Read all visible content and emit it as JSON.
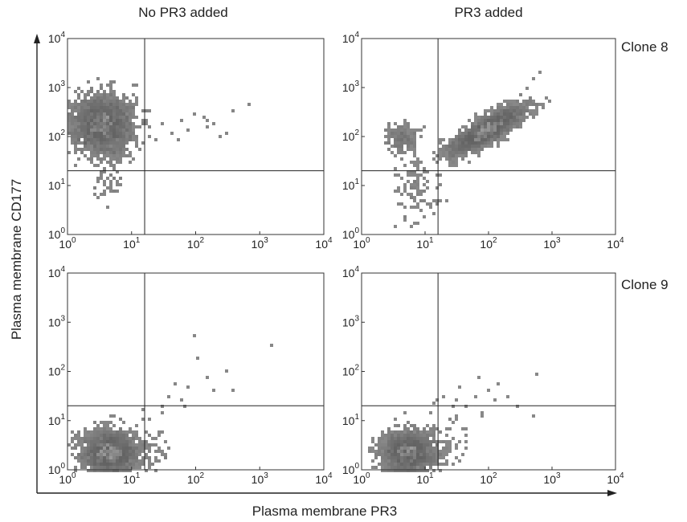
{
  "chart_data": {
    "type": "scatter",
    "x_axis_label": "Plasma membrane PR3",
    "y_axis_label": "Plasma membrane CD177",
    "column_titles": [
      "No PR3 added",
      "PR3 added"
    ],
    "row_labels": [
      "Clone 8",
      "Clone 9"
    ],
    "x_scale": "log",
    "y_scale": "log",
    "xlim": [
      1,
      10000
    ],
    "ylim": [
      1,
      10000
    ],
    "tick_base": "10",
    "tick_exponents": [
      "0",
      "1",
      "2",
      "3",
      "4"
    ],
    "gate_x": 16,
    "gate_y": 20,
    "grid": false,
    "panels": [
      {
        "column": "No PR3 added",
        "row": "Clone 8",
        "populations": [
          {
            "kind": "dense",
            "cx": 3.5,
            "cy": 180,
            "sx": 0.22,
            "sy": 0.28,
            "n": 2600
          },
          {
            "kind": "sparse",
            "cx": 4.5,
            "cy": 15,
            "sx": 0.12,
            "sy": 0.3,
            "n": 60
          },
          {
            "kind": "points",
            "x": [
              20,
              30,
              45,
              60,
              80,
              100,
              130,
              160,
              200,
              250,
              300,
              400,
              700,
              25,
              55,
              150
            ],
            "y": [
              150,
              180,
              120,
              200,
              130,
              300,
              250,
              150,
              180,
              100,
              120,
              350,
              450,
              80,
              90,
              220
            ]
          }
        ]
      },
      {
        "column": "PR3 added",
        "row": "Clone 8",
        "populations": [
          {
            "kind": "diagonal",
            "x_from": 15,
            "x_to": 600,
            "y_from": 30,
            "y_to": 600,
            "spread": 0.12,
            "n": 2400
          },
          {
            "kind": "sparse",
            "cx": 4.2,
            "cy": 90,
            "sx": 0.12,
            "sy": 0.14,
            "n": 220
          },
          {
            "kind": "sparse",
            "cx": 7.5,
            "cy": 8,
            "sx": 0.17,
            "sy": 0.35,
            "n": 110
          },
          {
            "kind": "points",
            "x": [
              400,
              500,
              650
            ],
            "y": [
              1000,
              1500,
              2200
            ]
          }
        ]
      },
      {
        "column": "No PR3 added",
        "row": "Clone 9",
        "populations": [
          {
            "kind": "dense",
            "cx": 4.5,
            "cy": 2.3,
            "sx": 0.2,
            "sy": 0.2,
            "n": 2400
          },
          {
            "kind": "sparse",
            "cx": 18,
            "cy": 2.5,
            "sx": 0.2,
            "sy": 0.3,
            "n": 70
          },
          {
            "kind": "points",
            "x": [
              20,
              30,
              40,
              60,
              80,
              100,
              150,
              200,
              300,
              400,
              1600,
              30,
              50,
              70,
              110
            ],
            "y": [
              10,
              20,
              30,
              25,
              50,
              500,
              70,
              40,
              100,
              40,
              350,
              15,
              60,
              20,
              200
            ]
          }
        ]
      },
      {
        "column": "PR3 added",
        "row": "Clone 9",
        "populations": [
          {
            "kind": "dense",
            "cx": 5.5,
            "cy": 2.3,
            "sx": 0.2,
            "sy": 0.2,
            "n": 2400
          },
          {
            "kind": "sparse",
            "cx": 20,
            "cy": 4,
            "sx": 0.2,
            "sy": 0.3,
            "n": 70
          },
          {
            "kind": "points",
            "x": [
              20,
              30,
              45,
              60,
              80,
              100,
              150,
              200,
              300,
              500,
              600,
              35,
              70,
              120
            ],
            "y": [
              30,
              25,
              20,
              30,
              15,
              40,
              60,
              30,
              20,
              12,
              90,
              45,
              70,
              25
            ]
          }
        ]
      }
    ]
  }
}
